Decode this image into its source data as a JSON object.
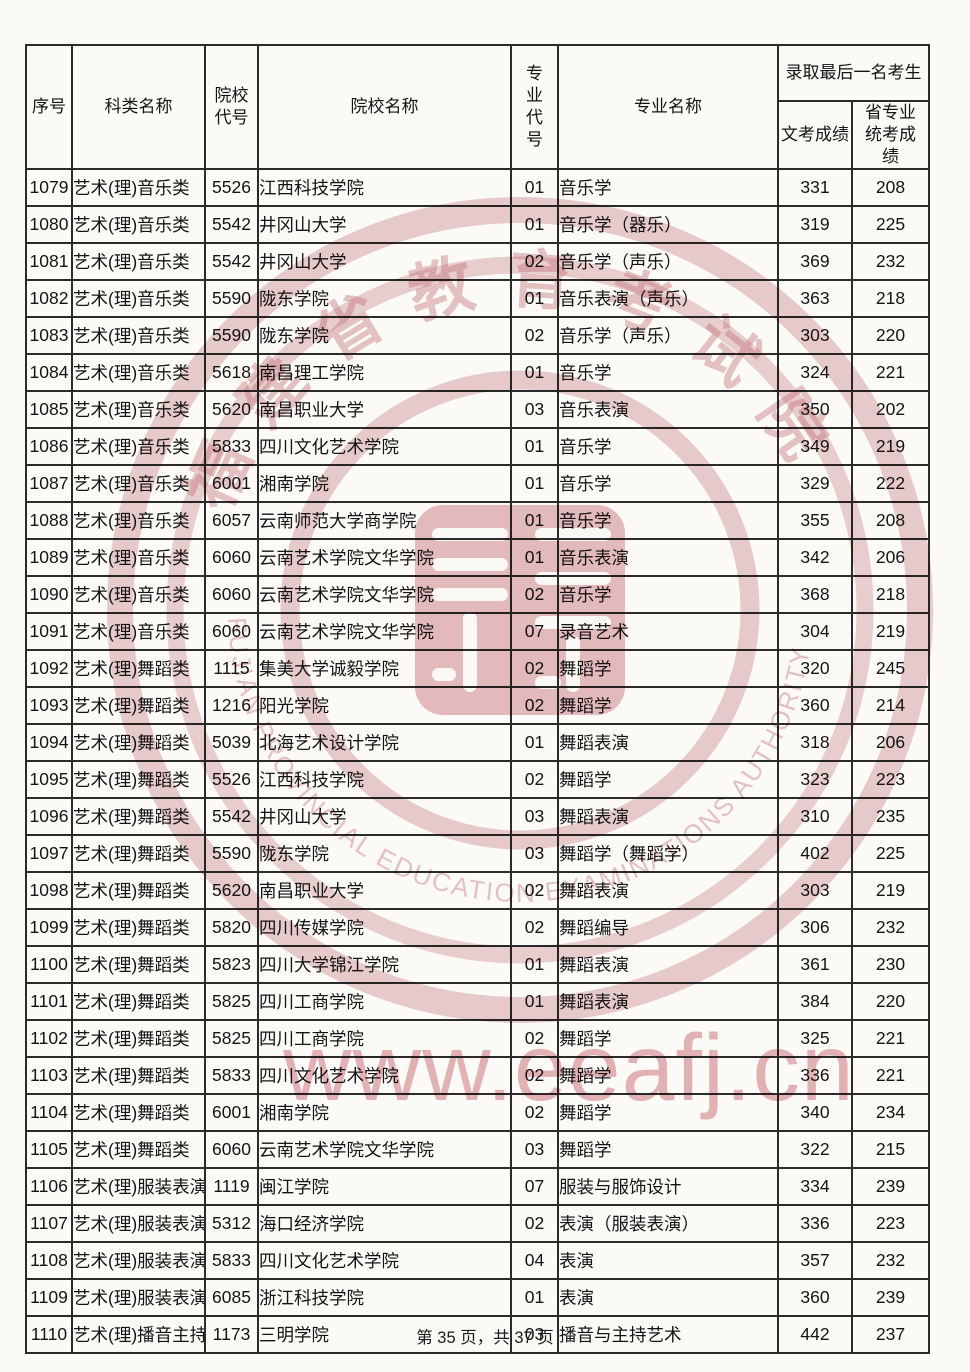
{
  "table": {
    "headers": {
      "serial": "序号",
      "category": "科类名称",
      "school_code": "院校代号",
      "school_name": "院校名称",
      "major_code": "专业代号",
      "major_name": "专业名称",
      "last_admitted": "录取最后一名考生",
      "wenkao": "文考成绩",
      "tongkao": "省专业统考成绩"
    },
    "rows": [
      [
        "1079",
        "艺术(理)音乐类",
        "5526",
        "江西科技学院",
        "01",
        "音乐学",
        "331",
        "208"
      ],
      [
        "1080",
        "艺术(理)音乐类",
        "5542",
        "井冈山大学",
        "01",
        "音乐学（器乐）",
        "319",
        "225"
      ],
      [
        "1081",
        "艺术(理)音乐类",
        "5542",
        "井冈山大学",
        "02",
        "音乐学（声乐）",
        "369",
        "232"
      ],
      [
        "1082",
        "艺术(理)音乐类",
        "5590",
        "陇东学院",
        "01",
        "音乐表演（声乐）",
        "363",
        "218"
      ],
      [
        "1083",
        "艺术(理)音乐类",
        "5590",
        "陇东学院",
        "02",
        "音乐学（声乐）",
        "303",
        "220"
      ],
      [
        "1084",
        "艺术(理)音乐类",
        "5618",
        "南昌理工学院",
        "01",
        "音乐学",
        "324",
        "221"
      ],
      [
        "1085",
        "艺术(理)音乐类",
        "5620",
        "南昌职业大学",
        "03",
        "音乐表演",
        "350",
        "202"
      ],
      [
        "1086",
        "艺术(理)音乐类",
        "5833",
        "四川文化艺术学院",
        "01",
        "音乐学",
        "349",
        "219"
      ],
      [
        "1087",
        "艺术(理)音乐类",
        "6001",
        "湘南学院",
        "01",
        "音乐学",
        "329",
        "222"
      ],
      [
        "1088",
        "艺术(理)音乐类",
        "6057",
        "云南师范大学商学院",
        "01",
        "音乐学",
        "355",
        "208"
      ],
      [
        "1089",
        "艺术(理)音乐类",
        "6060",
        "云南艺术学院文华学院",
        "01",
        "音乐表演",
        "342",
        "206"
      ],
      [
        "1090",
        "艺术(理)音乐类",
        "6060",
        "云南艺术学院文华学院",
        "02",
        "音乐学",
        "368",
        "218"
      ],
      [
        "1091",
        "艺术(理)音乐类",
        "6060",
        "云南艺术学院文华学院",
        "07",
        "录音艺术",
        "304",
        "219"
      ],
      [
        "1092",
        "艺术(理)舞蹈类",
        "1115",
        "集美大学诚毅学院",
        "02",
        "舞蹈学",
        "320",
        "245"
      ],
      [
        "1093",
        "艺术(理)舞蹈类",
        "1216",
        "阳光学院",
        "02",
        "舞蹈学",
        "360",
        "214"
      ],
      [
        "1094",
        "艺术(理)舞蹈类",
        "5039",
        "北海艺术设计学院",
        "01",
        "舞蹈表演",
        "318",
        "206"
      ],
      [
        "1095",
        "艺术(理)舞蹈类",
        "5526",
        "江西科技学院",
        "02",
        "舞蹈学",
        "323",
        "223"
      ],
      [
        "1096",
        "艺术(理)舞蹈类",
        "5542",
        "井冈山大学",
        "03",
        "舞蹈表演",
        "310",
        "235"
      ],
      [
        "1097",
        "艺术(理)舞蹈类",
        "5590",
        "陇东学院",
        "03",
        "舞蹈学（舞蹈学）",
        "402",
        "225"
      ],
      [
        "1098",
        "艺术(理)舞蹈类",
        "5620",
        "南昌职业大学",
        "02",
        "舞蹈表演",
        "303",
        "219"
      ],
      [
        "1099",
        "艺术(理)舞蹈类",
        "5820",
        "四川传媒学院",
        "02",
        "舞蹈编导",
        "306",
        "232"
      ],
      [
        "1100",
        "艺术(理)舞蹈类",
        "5823",
        "四川大学锦江学院",
        "01",
        "舞蹈表演",
        "361",
        "230"
      ],
      [
        "1101",
        "艺术(理)舞蹈类",
        "5825",
        "四川工商学院",
        "01",
        "舞蹈表演",
        "384",
        "220"
      ],
      [
        "1102",
        "艺术(理)舞蹈类",
        "5825",
        "四川工商学院",
        "02",
        "舞蹈学",
        "325",
        "221"
      ],
      [
        "1103",
        "艺术(理)舞蹈类",
        "5833",
        "四川文化艺术学院",
        "02",
        "舞蹈学",
        "336",
        "221"
      ],
      [
        "1104",
        "艺术(理)舞蹈类",
        "6001",
        "湘南学院",
        "02",
        "舞蹈学",
        "340",
        "234"
      ],
      [
        "1105",
        "艺术(理)舞蹈类",
        "6060",
        "云南艺术学院文华学院",
        "03",
        "舞蹈学",
        "322",
        "215"
      ],
      [
        "1106",
        "艺术(理)服装表演",
        "1119",
        "闽江学院",
        "07",
        "服装与服饰设计",
        "334",
        "239"
      ],
      [
        "1107",
        "艺术(理)服装表演",
        "5312",
        "海口经济学院",
        "02",
        "表演（服装表演）",
        "336",
        "223"
      ],
      [
        "1108",
        "艺术(理)服装表演",
        "5833",
        "四川文化艺术学院",
        "04",
        "表演",
        "357",
        "232"
      ],
      [
        "1109",
        "艺术(理)服装表演",
        "6085",
        "浙江科技学院",
        "01",
        "表演",
        "360",
        "239"
      ],
      [
        "1110",
        "艺术(理)播音主持",
        "1173",
        "三明学院",
        "03",
        "播音与主持艺术",
        "442",
        "237"
      ]
    ]
  },
  "watermark": {
    "chinese_chars": "福建省教育考试院",
    "english_text": "FUJIAN PROVINCIAL EDUCATION EXAMINATIONS AUTHORITY",
    "url": "www.eeafj.cn",
    "color": "#c06870"
  },
  "footer": {
    "page_text": "第 35 页，共 37 页"
  }
}
